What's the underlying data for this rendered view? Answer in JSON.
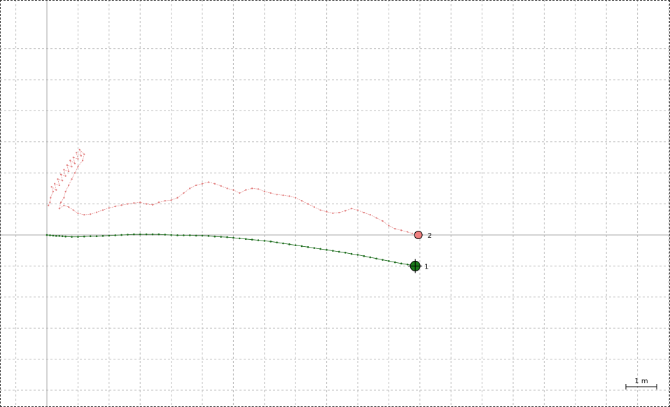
{
  "chart_data": {
    "type": "line",
    "grid": true,
    "scale_bar_label": "1 m",
    "colors": {
      "track1": "#1a6b1a",
      "track2": "#e07878",
      "grid": "#bdbdbd",
      "axis": "#a8a8a8"
    },
    "series": [
      {
        "name": "1",
        "points": [
          [
            0.0,
            0.0
          ],
          [
            0.1,
            -0.01
          ],
          [
            0.2,
            -0.02
          ],
          [
            0.3,
            -0.03
          ],
          [
            0.4,
            -0.03
          ],
          [
            0.5,
            -0.04
          ],
          [
            0.6,
            -0.05
          ],
          [
            0.8,
            -0.06
          ],
          [
            1.0,
            -0.06
          ],
          [
            1.2,
            -0.05
          ],
          [
            1.4,
            -0.04
          ],
          [
            1.6,
            -0.04
          ],
          [
            1.8,
            -0.03
          ],
          [
            2.0,
            -0.02
          ],
          [
            2.2,
            -0.01
          ],
          [
            2.4,
            0.0
          ],
          [
            2.6,
            0.01
          ],
          [
            2.8,
            0.02
          ],
          [
            3.0,
            0.02
          ],
          [
            3.2,
            0.02
          ],
          [
            3.4,
            0.02
          ],
          [
            3.6,
            0.02
          ],
          [
            3.8,
            0.01
          ],
          [
            4.0,
            0.0
          ],
          [
            4.2,
            -0.01
          ],
          [
            4.4,
            -0.01
          ],
          [
            4.6,
            -0.01
          ],
          [
            4.8,
            -0.02
          ],
          [
            5.0,
            -0.02
          ],
          [
            5.2,
            -0.03
          ],
          [
            5.4,
            -0.05
          ],
          [
            5.6,
            -0.06
          ],
          [
            5.8,
            -0.07
          ],
          [
            6.0,
            -0.09
          ],
          [
            6.2,
            -0.11
          ],
          [
            6.4,
            -0.13
          ],
          [
            6.6,
            -0.15
          ],
          [
            6.8,
            -0.17
          ],
          [
            7.0,
            -0.19
          ],
          [
            7.2,
            -0.21
          ],
          [
            7.4,
            -0.24
          ],
          [
            7.6,
            -0.27
          ],
          [
            7.8,
            -0.3
          ],
          [
            8.0,
            -0.33
          ],
          [
            8.2,
            -0.36
          ],
          [
            8.4,
            -0.39
          ],
          [
            8.6,
            -0.42
          ],
          [
            8.8,
            -0.45
          ],
          [
            9.0,
            -0.48
          ],
          [
            9.2,
            -0.51
          ],
          [
            9.4,
            -0.54
          ],
          [
            9.6,
            -0.57
          ],
          [
            9.8,
            -0.61
          ],
          [
            10.0,
            -0.64
          ],
          [
            10.2,
            -0.68
          ],
          [
            10.4,
            -0.72
          ],
          [
            10.6,
            -0.76
          ],
          [
            10.8,
            -0.8
          ],
          [
            11.0,
            -0.84
          ],
          [
            11.2,
            -0.88
          ],
          [
            11.4,
            -0.92
          ],
          [
            11.6,
            -0.95
          ],
          [
            11.85,
            -1.0
          ]
        ],
        "end_label": "1"
      },
      {
        "name": "2",
        "points": [
          [
            0.05,
            0.95
          ],
          [
            0.1,
            1.05
          ],
          [
            0.12,
            1.2
          ],
          [
            0.2,
            1.4
          ],
          [
            0.15,
            1.55
          ],
          [
            0.3,
            1.45
          ],
          [
            0.25,
            1.65
          ],
          [
            0.4,
            1.6
          ],
          [
            0.35,
            1.8
          ],
          [
            0.5,
            1.75
          ],
          [
            0.45,
            1.95
          ],
          [
            0.6,
            1.9
          ],
          [
            0.55,
            2.1
          ],
          [
            0.7,
            2.05
          ],
          [
            0.65,
            2.25
          ],
          [
            0.8,
            2.2
          ],
          [
            0.75,
            2.4
          ],
          [
            0.9,
            2.3
          ],
          [
            0.85,
            2.5
          ],
          [
            1.0,
            2.45
          ],
          [
            0.95,
            2.65
          ],
          [
            1.1,
            2.55
          ],
          [
            1.05,
            2.75
          ],
          [
            1.2,
            2.6
          ],
          [
            1.15,
            2.4
          ],
          [
            1.0,
            2.2
          ],
          [
            0.9,
            2.0
          ],
          [
            0.8,
            1.8
          ],
          [
            0.7,
            1.6
          ],
          [
            0.6,
            1.4
          ],
          [
            0.55,
            1.2
          ],
          [
            0.45,
            1.05
          ],
          [
            0.4,
            0.85
          ],
          [
            0.55,
            0.95
          ],
          [
            0.7,
            0.9
          ],
          [
            0.85,
            0.8
          ],
          [
            1.0,
            0.7
          ],
          [
            1.2,
            0.65
          ],
          [
            1.4,
            0.67
          ],
          [
            1.6,
            0.73
          ],
          [
            1.8,
            0.8
          ],
          [
            2.0,
            0.87
          ],
          [
            2.2,
            0.92
          ],
          [
            2.4,
            0.96
          ],
          [
            2.6,
            1.0
          ],
          [
            2.8,
            1.03
          ],
          [
            3.0,
            1.05
          ],
          [
            3.2,
            1.0
          ],
          [
            3.4,
            0.97
          ],
          [
            3.6,
            1.05
          ],
          [
            3.8,
            1.1
          ],
          [
            4.0,
            1.12
          ],
          [
            4.2,
            1.2
          ],
          [
            4.4,
            1.35
          ],
          [
            4.6,
            1.5
          ],
          [
            4.8,
            1.6
          ],
          [
            5.0,
            1.65
          ],
          [
            5.2,
            1.7
          ],
          [
            5.4,
            1.65
          ],
          [
            5.6,
            1.58
          ],
          [
            5.8,
            1.5
          ],
          [
            6.0,
            1.45
          ],
          [
            6.2,
            1.35
          ],
          [
            6.4,
            1.45
          ],
          [
            6.6,
            1.5
          ],
          [
            6.8,
            1.48
          ],
          [
            7.0,
            1.4
          ],
          [
            7.2,
            1.35
          ],
          [
            7.4,
            1.3
          ],
          [
            7.6,
            1.28
          ],
          [
            7.8,
            1.25
          ],
          [
            8.0,
            1.2
          ],
          [
            8.2,
            1.1
          ],
          [
            8.4,
            1.0
          ],
          [
            8.6,
            0.9
          ],
          [
            8.8,
            0.8
          ],
          [
            9.0,
            0.75
          ],
          [
            9.2,
            0.7
          ],
          [
            9.4,
            0.72
          ],
          [
            9.6,
            0.78
          ],
          [
            9.8,
            0.85
          ],
          [
            10.0,
            0.8
          ],
          [
            10.2,
            0.72
          ],
          [
            10.4,
            0.65
          ],
          [
            10.6,
            0.55
          ],
          [
            10.8,
            0.45
          ],
          [
            11.0,
            0.3
          ],
          [
            11.2,
            0.2
          ],
          [
            11.4,
            0.15
          ],
          [
            11.6,
            0.1
          ],
          [
            11.75,
            0.05
          ],
          [
            11.95,
            0.0
          ]
        ],
        "end_label": "2"
      }
    ]
  }
}
